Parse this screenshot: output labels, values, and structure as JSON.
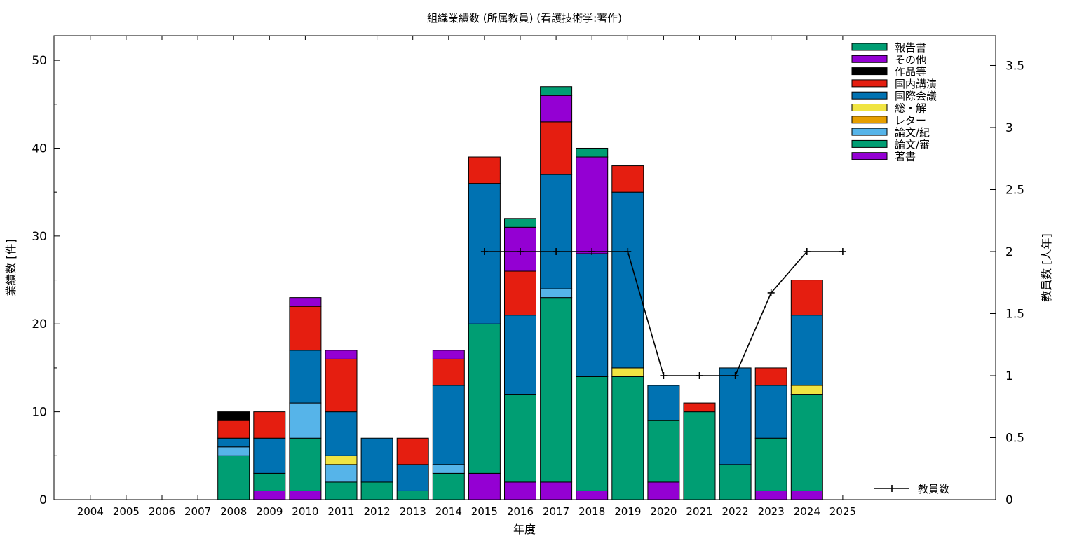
{
  "chart_data": {
    "type": "bar",
    "title": "組織業績数 (所属教員) (看護技術学:著作)",
    "xlabel": "年度",
    "ylabel": "業績数 [件]",
    "y2label": "教員数 [人年]",
    "ylim": [
      0,
      52.8
    ],
    "y2lim": [
      0,
      3.74
    ],
    "yticks": [
      0,
      10,
      20,
      30,
      40,
      50
    ],
    "y2ticks": [
      "0",
      "0.5",
      "1",
      "1.5",
      "2",
      "2.5",
      "3",
      "3.5"
    ],
    "stacked": true,
    "legend_placement": "top-right",
    "categories": [
      "2004",
      "2005",
      "2006",
      "2007",
      "2008",
      "2009",
      "2010",
      "2011",
      "2012",
      "2013",
      "2014",
      "2015",
      "2016",
      "2017",
      "2018",
      "2019",
      "2020",
      "2021",
      "2022",
      "2023",
      "2024",
      "2025"
    ],
    "series": [
      {
        "name": "著書",
        "color": "#9400d3",
        "values": [
          0,
          0,
          0,
          0,
          0,
          1,
          1,
          0,
          0,
          0,
          0,
          3,
          2,
          2,
          1,
          0,
          2,
          0,
          0,
          1,
          1,
          0
        ]
      },
      {
        "name": "論文/審",
        "color": "#009e73",
        "values": [
          0,
          0,
          0,
          0,
          5,
          2,
          6,
          2,
          2,
          1,
          3,
          17,
          10,
          21,
          13,
          14,
          7,
          10,
          4,
          6,
          11,
          0
        ]
      },
      {
        "name": "論文/紀",
        "color": "#56b4e9",
        "values": [
          0,
          0,
          0,
          0,
          1,
          0,
          4,
          2,
          0,
          0,
          1,
          0,
          0,
          1,
          0,
          0,
          0,
          0,
          0,
          0,
          0,
          0
        ]
      },
      {
        "name": "レター",
        "color": "#e69f00",
        "values": [
          0,
          0,
          0,
          0,
          0,
          0,
          0,
          0,
          0,
          0,
          0,
          0,
          0,
          0,
          0,
          0,
          0,
          0,
          0,
          0,
          0,
          0
        ]
      },
      {
        "name": "総・解",
        "color": "#f0e442",
        "values": [
          0,
          0,
          0,
          0,
          0,
          0,
          0,
          1,
          0,
          0,
          0,
          0,
          0,
          0,
          0,
          1,
          0,
          0,
          0,
          0,
          1,
          0
        ]
      },
      {
        "name": "国際会議",
        "color": "#0072b2",
        "values": [
          0,
          0,
          0,
          0,
          1,
          4,
          6,
          5,
          5,
          3,
          9,
          16,
          9,
          13,
          14,
          20,
          4,
          0,
          11,
          6,
          8,
          0
        ]
      },
      {
        "name": "国内講演",
        "color": "#e51e10",
        "values": [
          0,
          0,
          0,
          0,
          2,
          3,
          5,
          6,
          0,
          3,
          3,
          3,
          5,
          6,
          0,
          3,
          0,
          1,
          0,
          2,
          4,
          0
        ]
      },
      {
        "name": "作品等",
        "color": "#000000",
        "values": [
          0,
          0,
          0,
          0,
          1,
          0,
          0,
          0,
          0,
          0,
          0,
          0,
          0,
          0,
          0,
          0,
          0,
          0,
          0,
          0,
          0,
          0
        ]
      },
      {
        "name": "その他",
        "color": "#9400d3",
        "values": [
          0,
          0,
          0,
          0,
          0,
          0,
          1,
          1,
          0,
          0,
          1,
          0,
          5,
          3,
          11,
          0,
          0,
          0,
          0,
          0,
          0,
          0
        ]
      },
      {
        "name": "報告書",
        "color": "#009e73",
        "values": [
          0,
          0,
          0,
          0,
          0,
          0,
          0,
          0,
          0,
          0,
          0,
          0,
          1,
          1,
          1,
          0,
          0,
          0,
          0,
          0,
          0,
          0
        ]
      }
    ],
    "line_series": {
      "name": "教員数",
      "color": "#000000",
      "axis": "y2",
      "x": [
        "2015",
        "2016",
        "2017",
        "2018",
        "2019",
        "2020",
        "2021",
        "2022",
        "2023",
        "2024",
        "2025"
      ],
      "values": [
        2,
        2,
        2,
        2,
        2,
        1,
        1,
        1,
        1.667,
        2,
        2
      ]
    },
    "legend_order": [
      "報告書",
      "その他",
      "作品等",
      "国内講演",
      "国際会議",
      "総・解",
      "レター",
      "論文/紀",
      "論文/審",
      "著書"
    ]
  }
}
